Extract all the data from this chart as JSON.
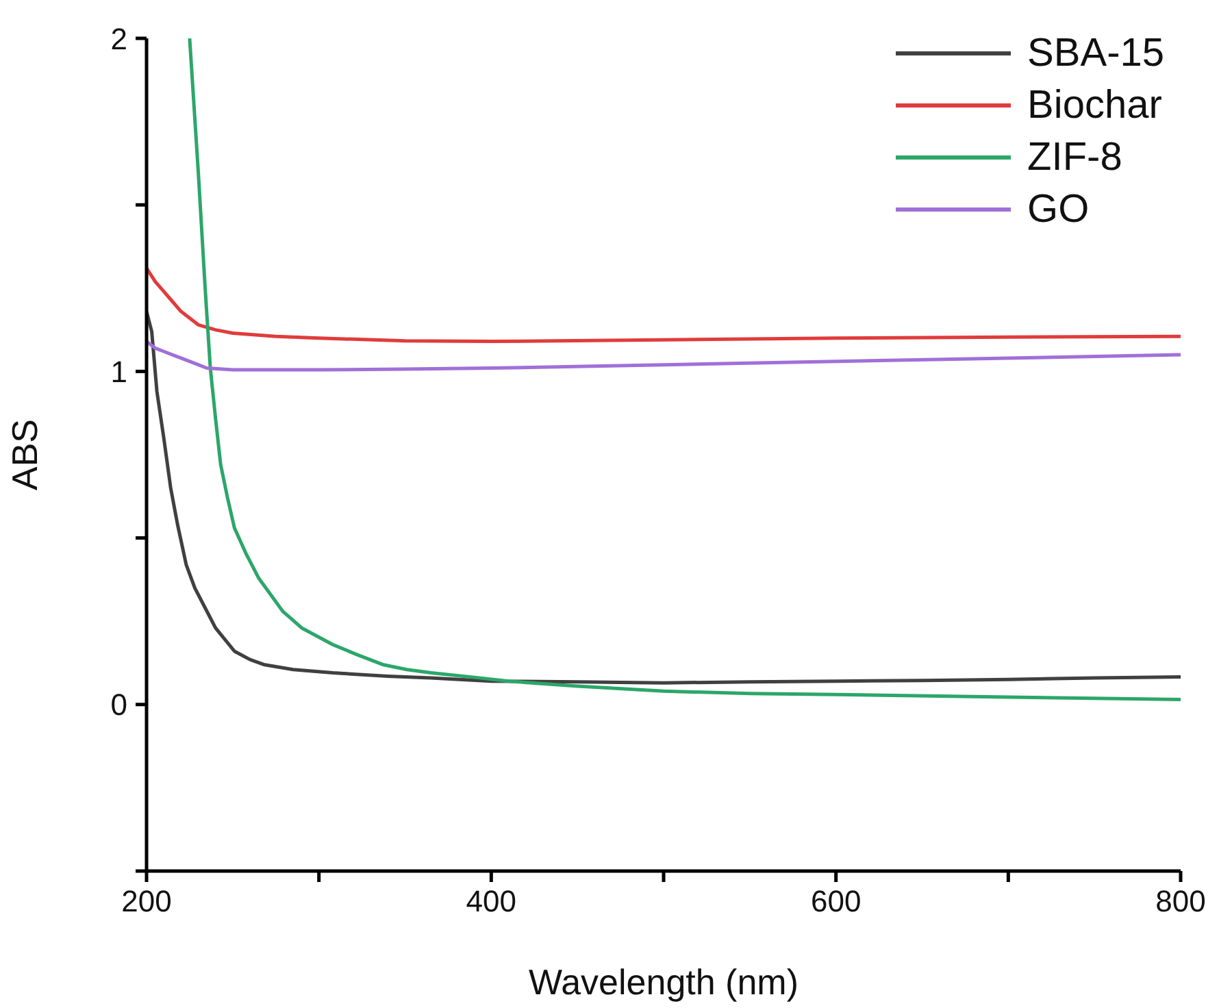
{
  "chart_data": {
    "type": "line",
    "xlabel": "Wavelength (nm)",
    "ylabel": "ABS",
    "xlim": [
      200,
      800
    ],
    "ylim": [
      -0.5,
      2
    ],
    "xticks": [
      200,
      {
        "value": 300,
        "label": null
      },
      400,
      {
        "value": 500,
        "label": null
      },
      600,
      {
        "value": 700,
        "label": null
      },
      800
    ],
    "yticks": [
      {
        "value": -0.5,
        "label": null
      },
      0,
      {
        "value": 0.5,
        "label": null
      },
      1,
      {
        "value": 1.5,
        "label": null
      },
      2
    ],
    "grid": false,
    "legend": "top right",
    "marker": "none",
    "line_style": "solid",
    "series": [
      {
        "name": "SBA-15",
        "color": "#404040",
        "x": [
          200,
          203,
          206,
          210,
          214,
          218,
          223,
          228,
          234,
          240,
          251,
          260,
          268,
          285,
          308,
          340,
          365,
          400,
          450,
          500,
          550,
          600,
          650,
          700,
          750,
          800
        ],
        "values": [
          1.18,
          1.12,
          0.94,
          0.8,
          0.65,
          0.54,
          0.42,
          0.35,
          0.29,
          0.23,
          0.16,
          0.135,
          0.12,
          0.105,
          0.095,
          0.085,
          0.08,
          0.07,
          0.068,
          0.065,
          0.068,
          0.07,
          0.072,
          0.075,
          0.08,
          0.083
        ]
      },
      {
        "name": "Biochar",
        "color": "#e03c3c",
        "x": [
          200,
          205,
          210,
          215,
          220,
          230,
          240,
          250,
          275,
          300,
          350,
          400,
          500,
          600,
          700,
          800
        ],
        "values": [
          1.31,
          1.27,
          1.24,
          1.21,
          1.18,
          1.14,
          1.125,
          1.115,
          1.105,
          1.1,
          1.092,
          1.09,
          1.095,
          1.1,
          1.103,
          1.105
        ]
      },
      {
        "name": "ZIF-8",
        "color": "#2ca66a",
        "x": [
          225,
          230,
          234,
          237,
          240,
          243,
          247,
          251,
          258,
          265,
          272,
          279,
          290,
          308,
          322,
          337,
          351,
          365,
          393,
          410,
          450,
          500,
          550,
          600,
          700,
          800
        ],
        "values": [
          2.0,
          1.6,
          1.25,
          1.01,
          0.86,
          0.72,
          0.62,
          0.53,
          0.45,
          0.38,
          0.33,
          0.28,
          0.23,
          0.18,
          0.15,
          0.12,
          0.105,
          0.095,
          0.08,
          0.07,
          0.055,
          0.04,
          0.033,
          0.03,
          0.022,
          0.015
        ]
      },
      {
        "name": "GO",
        "color": "#a070d8",
        "x": [
          200,
          205,
          210,
          220,
          230,
          235,
          250,
          300,
          350,
          400,
          500,
          600,
          700,
          800
        ],
        "values": [
          1.09,
          1.07,
          1.06,
          1.04,
          1.02,
          1.01,
          1.005,
          1.005,
          1.007,
          1.01,
          1.02,
          1.03,
          1.04,
          1.05
        ]
      }
    ]
  }
}
